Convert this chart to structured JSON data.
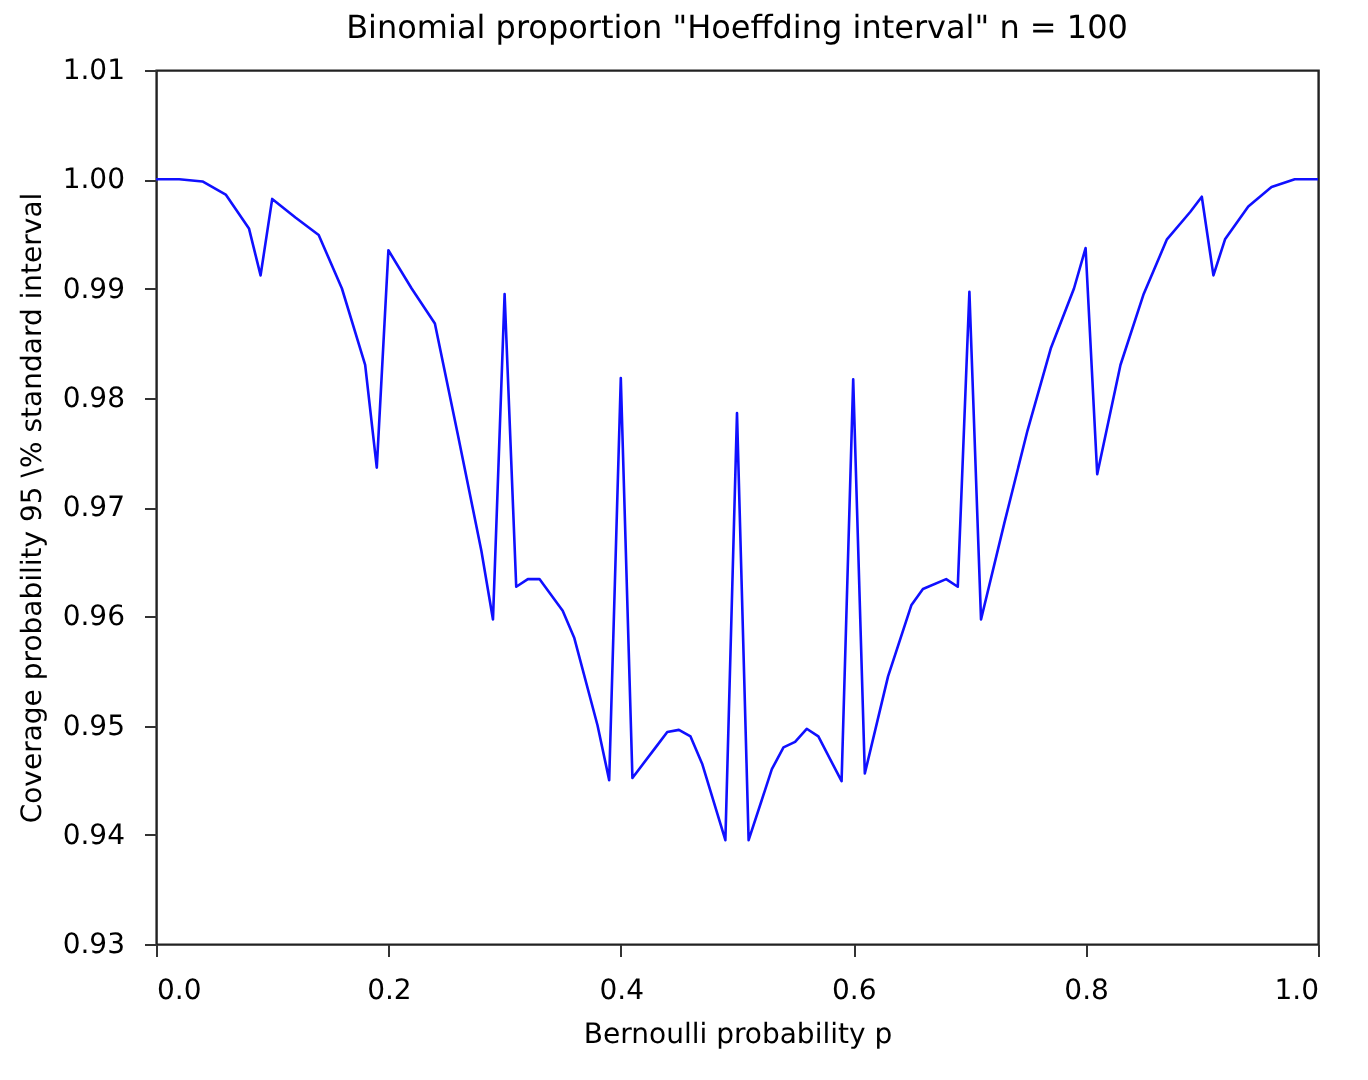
{
  "chart_data": {
    "type": "line",
    "title": "Binomial proportion \"Hoeffding interval\" n = 100",
    "xlabel": "Bernoulli probability  p",
    "ylabel": "Coverage probability 95 \\% standard interval",
    "x": [
      0,
      0.02,
      0.04,
      0.06,
      0.08,
      0.09,
      0.1,
      0.12,
      0.14,
      0.16,
      0.18,
      0.19,
      0.2,
      0.22,
      0.24,
      0.26,
      0.28,
      0.29,
      0.3,
      0.31,
      0.32,
      0.33,
      0.35,
      0.36,
      0.38,
      0.39,
      0.4,
      0.41,
      0.43,
      0.44,
      0.45,
      0.46,
      0.47,
      0.49,
      0.5,
      0.51,
      0.53,
      0.54,
      0.55,
      0.56,
      0.57,
      0.59,
      0.6,
      0.61,
      0.63,
      0.65,
      0.66,
      0.68,
      0.69,
      0.7,
      0.71,
      0.73,
      0.75,
      0.77,
      0.79,
      0.8,
      0.81,
      0.83,
      0.85,
      0.87,
      0.89,
      0.9,
      0.91,
      0.92,
      0.94,
      0.96,
      0.98,
      1.0
    ],
    "series": [
      {
        "color": "#1010ff",
        "values": [
          1.0,
          1.0,
          0.9998,
          0.9986,
          0.9955,
          0.9912,
          0.9982,
          0.9965,
          0.9949,
          0.99,
          0.983,
          0.9736,
          0.9935,
          0.99,
          0.9868,
          0.9765,
          0.966,
          0.9597,
          0.9895,
          0.9627,
          0.9634,
          0.9634,
          0.9605,
          0.958,
          0.95,
          0.945,
          0.9818,
          0.9452,
          0.948,
          0.9494,
          0.9496,
          0.949,
          0.9465,
          0.9395,
          0.9786,
          0.9395,
          0.946,
          0.948,
          0.9485,
          0.9497,
          0.949,
          0.9449,
          0.9817,
          0.9456,
          0.9545,
          0.961,
          0.9625,
          0.9634,
          0.9627,
          0.9897,
          0.9597,
          0.9685,
          0.977,
          0.9845,
          0.99,
          0.9937,
          0.973,
          0.983,
          0.9895,
          0.9945,
          0.997,
          0.9984,
          0.9912,
          0.9945,
          0.9975,
          0.9993,
          1.0,
          1.0
        ]
      }
    ],
    "xlim": [
      0,
      1
    ],
    "ylim": [
      0.93,
      1.01
    ],
    "xticks": [
      {
        "value": 0,
        "label": "0.0"
      },
      0.2,
      0.4,
      0.6,
      0.8,
      {
        "value": 1,
        "label": "1.0"
      }
    ],
    "yticks": [
      0.93,
      0.94,
      0.95,
      0.96,
      0.97,
      0.98,
      0.99,
      {
        "value": 1,
        "label": "1.00"
      },
      1.01
    ],
    "grid": false
  }
}
